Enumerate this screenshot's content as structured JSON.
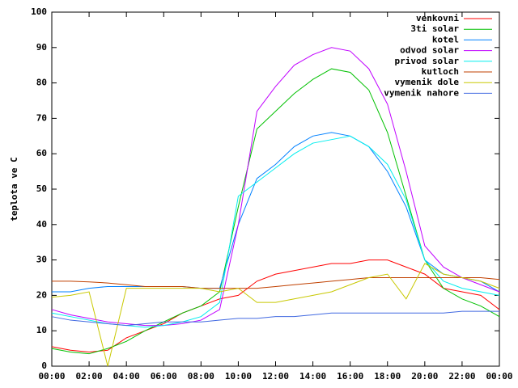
{
  "chart_data": {
    "type": "line",
    "y_label": "teplota ve C",
    "x": [
      0,
      1,
      2,
      3,
      4,
      5,
      6,
      7,
      8,
      9,
      10,
      11,
      12,
      13,
      14,
      15,
      16,
      17,
      18,
      19,
      20,
      21,
      22,
      23,
      24
    ],
    "xlim": [
      0,
      24
    ],
    "xticks": [
      {
        "value": 0,
        "label": "00:00"
      },
      {
        "value": 2,
        "label": "02:00"
      },
      {
        "value": 4,
        "label": "04:00"
      },
      {
        "value": 6,
        "label": "06:00"
      },
      {
        "value": 8,
        "label": "08:00"
      },
      {
        "value": 10,
        "label": "10:00"
      },
      {
        "value": 12,
        "label": "12:00"
      },
      {
        "value": 14,
        "label": "14:00"
      },
      {
        "value": 16,
        "label": "16:00"
      },
      {
        "value": 18,
        "label": "18:00"
      },
      {
        "value": 20,
        "label": "20:00"
      },
      {
        "value": 22,
        "label": "22:00"
      },
      {
        "value": 24,
        "label": "00:00"
      }
    ],
    "ylim": [
      0,
      100
    ],
    "yticks": [
      0,
      10,
      20,
      30,
      40,
      50,
      60,
      70,
      80,
      90,
      100
    ],
    "legend": "top-right",
    "series": [
      {
        "name": "venkovni",
        "color": "#ff0000",
        "values": [
          5.5,
          4.5,
          4,
          4.5,
          8,
          10,
          12,
          15,
          17,
          19,
          20,
          24,
          26,
          27,
          28,
          29,
          29,
          30,
          30,
          28,
          26,
          22,
          21,
          20,
          16
        ]
      },
      {
        "name": "3ti solar",
        "color": "#00c000",
        "values": [
          5,
          4,
          3.5,
          5,
          7,
          10,
          12.5,
          15,
          17,
          21,
          45,
          67,
          72,
          77,
          81,
          84,
          83,
          78,
          66,
          48,
          30,
          22,
          19,
          17,
          14
        ]
      },
      {
        "name": "kotel",
        "color": "#0080ff",
        "values": [
          21,
          21,
          22,
          22.5,
          22.5,
          22.5,
          22.5,
          22.5,
          22,
          22,
          40,
          53,
          57,
          62,
          65,
          66,
          65,
          62,
          55,
          45,
          30,
          26,
          25,
          24,
          21
        ]
      },
      {
        "name": "odvod solar",
        "color": "#c000ff",
        "values": [
          16,
          14.5,
          13.5,
          12.5,
          12,
          11.5,
          11.5,
          12,
          13,
          16,
          40,
          72,
          79,
          85,
          88,
          90,
          89,
          84,
          74,
          55,
          34,
          28,
          25,
          23,
          21
        ]
      },
      {
        "name": "privod solar",
        "color": "#00eeee",
        "values": [
          15,
          14,
          13,
          12,
          11.5,
          11,
          11.5,
          12.5,
          14,
          18,
          48,
          52,
          56,
          60,
          63,
          64,
          65,
          62,
          57,
          47,
          30,
          24,
          22,
          21,
          20
        ]
      },
      {
        "name": "kutloch",
        "color": "#c04000",
        "values": [
          24,
          24,
          23.8,
          23.5,
          23,
          22.5,
          22.5,
          22.5,
          22,
          22,
          22,
          22,
          22.5,
          23,
          23.5,
          24,
          24.5,
          25,
          25,
          25,
          25,
          25,
          25,
          25,
          24.5
        ]
      },
      {
        "name": "vymenik dole",
        "color": "#c8c800",
        "values": [
          19.5,
          20,
          21,
          0,
          22,
          22,
          22,
          22,
          22,
          21,
          22,
          18,
          18,
          19,
          20,
          21,
          23,
          25,
          26,
          19,
          29,
          26,
          25,
          24,
          22
        ]
      },
      {
        "name": "vymenik nahore",
        "color": "#4169e1",
        "values": [
          14,
          13,
          12.5,
          12,
          11.5,
          12,
          12.5,
          12.5,
          12.5,
          13,
          13.5,
          13.5,
          14,
          14,
          14.5,
          15,
          15,
          15,
          15,
          15,
          15,
          15,
          15.5,
          15.5,
          15.5
        ]
      }
    ]
  }
}
